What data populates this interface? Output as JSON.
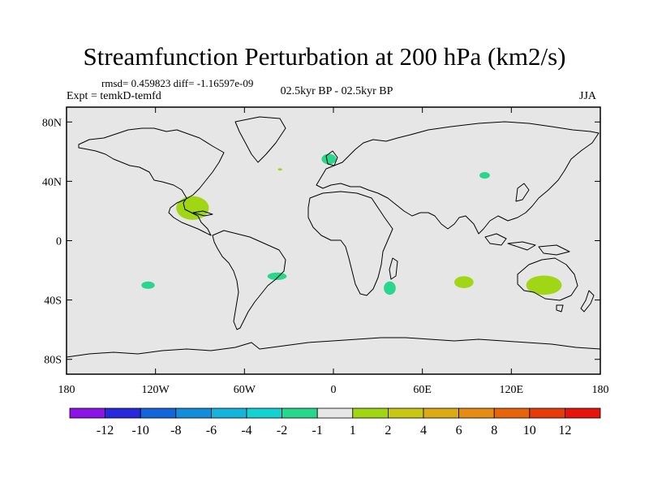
{
  "title": "Streamfunction Perturbation at 200 hPa (km2/s)",
  "stats": "rmsd= 0.459823  diff= -1.16597e-09",
  "expt": "Expt = temkD-temfd",
  "period": "02.5kyr BP - 02.5kyr BP",
  "season": "JJA",
  "map": {
    "lon_range": [
      -180,
      180
    ],
    "lat_range": [
      -90,
      90
    ],
    "x_ticks": [
      {
        "lon": -180,
        "label": "180"
      },
      {
        "lon": -120,
        "label": "120W"
      },
      {
        "lon": -60,
        "label": "60W"
      },
      {
        "lon": 0,
        "label": "0"
      },
      {
        "lon": 60,
        "label": "60E"
      },
      {
        "lon": 120,
        "label": "120E"
      },
      {
        "lon": 180,
        "label": "180"
      }
    ],
    "y_ticks": [
      {
        "lat": 80,
        "label": "80N"
      },
      {
        "lat": 40,
        "label": "40N"
      },
      {
        "lat": 0,
        "label": "0"
      },
      {
        "lat": -40,
        "label": "40S"
      },
      {
        "lat": -80,
        "label": "80S"
      }
    ],
    "background_color": "#e6e6e6",
    "anomalies": [
      {
        "name": "caribbean",
        "lon": -95,
        "lat": 22,
        "rlon": 11,
        "rlat": 8,
        "level": 2,
        "color": "#a0d614"
      },
      {
        "name": "north-sea",
        "lon": -3,
        "lat": 55,
        "rlon": 5,
        "rlat": 3.5,
        "level": -2,
        "color": "#28d68c"
      },
      {
        "name": "north-atlantic",
        "lon": -36,
        "lat": 48,
        "rlon": 1.5,
        "rlat": 0.8,
        "level": 2,
        "color": "#a0d614"
      },
      {
        "name": "mongolia",
        "lon": 102,
        "lat": 44,
        "rlon": 3.5,
        "rlat": 2.2,
        "level": -2,
        "color": "#28d68c"
      },
      {
        "name": "south-pacific",
        "lon": -125,
        "lat": -30,
        "rlon": 4.5,
        "rlat": 2.5,
        "level": -2,
        "color": "#28d68c"
      },
      {
        "name": "south-atlantic",
        "lon": -38,
        "lat": -24,
        "rlon": 6.5,
        "rlat": 2.5,
        "level": -2,
        "color": "#28d68c"
      },
      {
        "name": "south-africa",
        "lon": 38,
        "lat": -32,
        "rlon": 4,
        "rlat": 4.5,
        "level": -2,
        "color": "#28d68c"
      },
      {
        "name": "indian-ocean",
        "lon": 88,
        "lat": -28,
        "rlon": 6.5,
        "rlat": 4,
        "level": 2,
        "color": "#a0d614"
      },
      {
        "name": "australia",
        "lon": 142,
        "lat": -30,
        "rlon": 12,
        "rlat": 6.5,
        "level": 2,
        "color": "#a0d614"
      }
    ]
  },
  "colorbar": {
    "colors": [
      "#8c14e6",
      "#2828dc",
      "#1464dc",
      "#148cdc",
      "#14b4dc",
      "#14d2d2",
      "#28d68c",
      "#e6e6e6",
      "#a0d614",
      "#c8c814",
      "#dcaa14",
      "#e68c14",
      "#e6640a",
      "#e63c0a",
      "#e6140a"
    ],
    "labels": [
      "-12",
      "-10",
      "-8",
      "-6",
      "-4",
      "-2",
      "-1",
      "1",
      "2",
      "4",
      "6",
      "8",
      "10",
      "12"
    ]
  }
}
